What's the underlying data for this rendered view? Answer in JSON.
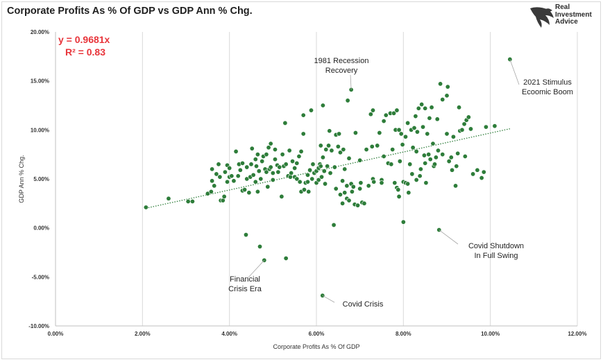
{
  "header": {
    "title": "Corporate Profits As % Of GDP vs GDP Ann % Chg.",
    "logo_lines": [
      "Real",
      "Investment",
      "Advice"
    ]
  },
  "chart_data": {
    "type": "scatter",
    "title": "Corporate Profits As % Of GDP vs GDP Ann % Chg.",
    "xlabel": "Corporate Profits As % Of GDP",
    "ylabel": "GDP Ann % Chg.",
    "xlim": [
      0,
      12
    ],
    "ylim": [
      -10,
      20
    ],
    "x_ticks": [
      "0.00%",
      "2.00%",
      "4.00%",
      "6.00%",
      "8.00%",
      "10.00%",
      "12.00%"
    ],
    "y_ticks": [
      "-10.00%",
      "-5.00%",
      "0.00%",
      "5.00%",
      "10.00%",
      "15.00%",
      "20.00%"
    ],
    "grid": "vertical",
    "point_color": "#2e7d3a",
    "trendline": {
      "slope": 0.9681,
      "intercept": 0,
      "color": "#2e7d3a",
      "style": "dotted",
      "x_range": [
        2.08,
        10.45
      ]
    },
    "equation": "y = 0.9681x",
    "r_squared": "R² = 0.83",
    "equation_color": "#e8353b",
    "annotations": [
      {
        "lines": [
          "1981 Recession",
          "Recovery"
        ],
        "point": [
          6.8,
          14.1
        ]
      },
      {
        "lines": [
          "2021 Stimulus",
          "Ecoomic Boom"
        ],
        "point": [
          10.45,
          17.2
        ]
      },
      {
        "lines": [
          "Covid Shutdown",
          "In Full Swing"
        ],
        "point": [
          8.82,
          -0.2
        ]
      },
      {
        "lines": [
          "Financial",
          "Crisis Era"
        ],
        "point": [
          4.8,
          -3.3
        ]
      },
      {
        "lines": [
          "Covid Crisis"
        ],
        "point": [
          6.14,
          -6.9
        ]
      }
    ],
    "points": [
      [
        2.08,
        2.1
      ],
      [
        2.6,
        3.0
      ],
      [
        3.05,
        2.7
      ],
      [
        3.15,
        2.7
      ],
      [
        3.5,
        3.5
      ],
      [
        3.58,
        3.7
      ],
      [
        3.6,
        4.8
      ],
      [
        3.65,
        4.3
      ],
      [
        3.6,
        6.0
      ],
      [
        3.7,
        5.5
      ],
      [
        3.75,
        6.5
      ],
      [
        3.78,
        5.2
      ],
      [
        3.8,
        2.8
      ],
      [
        3.85,
        2.8
      ],
      [
        3.88,
        3.2
      ],
      [
        3.9,
        5.7
      ],
      [
        3.95,
        4.7
      ],
      [
        3.95,
        6.4
      ],
      [
        4.0,
        5.2
      ],
      [
        4.0,
        6.1
      ],
      [
        4.05,
        5.3
      ],
      [
        4.1,
        4.8
      ],
      [
        4.15,
        7.8
      ],
      [
        4.2,
        5.3
      ],
      [
        4.22,
        6.5
      ],
      [
        4.25,
        5.9
      ],
      [
        4.3,
        3.8
      ],
      [
        4.3,
        6.6
      ],
      [
        4.35,
        3.9
      ],
      [
        4.38,
        -0.7
      ],
      [
        4.4,
        6.2
      ],
      [
        4.4,
        5.0
      ],
      [
        4.45,
        3.6
      ],
      [
        4.48,
        5.2
      ],
      [
        4.5,
        6.5
      ],
      [
        4.52,
        8.1
      ],
      [
        4.55,
        5.4
      ],
      [
        4.6,
        7.0
      ],
      [
        4.6,
        4.7
      ],
      [
        4.62,
        6.3
      ],
      [
        4.65,
        7.5
      ],
      [
        4.65,
        3.7
      ],
      [
        4.68,
        5.8
      ],
      [
        4.7,
        -1.9
      ],
      [
        4.72,
        5.0
      ],
      [
        4.75,
        6.8
      ],
      [
        4.78,
        7.3
      ],
      [
        4.8,
        -3.3
      ],
      [
        4.82,
        6.0
      ],
      [
        4.85,
        7.5
      ],
      [
        4.85,
        5.7
      ],
      [
        4.88,
        4.2
      ],
      [
        4.9,
        8.2
      ],
      [
        4.92,
        6.0
      ],
      [
        4.95,
        6.2
      ],
      [
        4.95,
        8.6
      ],
      [
        5.0,
        5.6
      ],
      [
        5.0,
        4.9
      ],
      [
        5.05,
        7.0
      ],
      [
        5.05,
        8.0
      ],
      [
        5.1,
        6.4
      ],
      [
        5.12,
        5.7
      ],
      [
        5.15,
        6.2
      ],
      [
        5.2,
        3.2
      ],
      [
        5.22,
        7.5
      ],
      [
        5.25,
        6.3
      ],
      [
        5.28,
        10.7
      ],
      [
        5.3,
        -3.1
      ],
      [
        5.3,
        6.5
      ],
      [
        5.35,
        5.3
      ],
      [
        5.38,
        7.9
      ],
      [
        5.4,
        5.2
      ],
      [
        5.42,
        5.6
      ],
      [
        5.45,
        6.8
      ],
      [
        5.5,
        6.1
      ],
      [
        5.5,
        5.2
      ],
      [
        5.55,
        5.0
      ],
      [
        5.55,
        6.6
      ],
      [
        5.6,
        7.3
      ],
      [
        5.62,
        4.7
      ],
      [
        5.65,
        3.7
      ],
      [
        5.65,
        7.8
      ],
      [
        5.7,
        11.5
      ],
      [
        5.7,
        9.6
      ],
      [
        5.72,
        3.9
      ],
      [
        5.75,
        4.6
      ],
      [
        5.8,
        5.4
      ],
      [
        5.8,
        4.7
      ],
      [
        5.82,
        3.7
      ],
      [
        5.85,
        5.9
      ],
      [
        5.88,
        12.0
      ],
      [
        5.9,
        5.0
      ],
      [
        5.92,
        6.5
      ],
      [
        5.95,
        5.6
      ],
      [
        6.0,
        5.8
      ],
      [
        6.0,
        4.6
      ],
      [
        6.05,
        6.1
      ],
      [
        6.05,
        4.9
      ],
      [
        6.08,
        6.5
      ],
      [
        6.1,
        6.3
      ],
      [
        6.1,
        8.4
      ],
      [
        6.12,
        5.2
      ],
      [
        6.14,
        -6.9
      ],
      [
        6.15,
        12.5
      ],
      [
        6.15,
        7.2
      ],
      [
        6.18,
        5.8
      ],
      [
        6.2,
        4.5
      ],
      [
        6.22,
        8.0
      ],
      [
        6.25,
        6.3
      ],
      [
        6.28,
        8.4
      ],
      [
        6.3,
        9.9
      ],
      [
        6.32,
        5.6
      ],
      [
        6.35,
        7.9
      ],
      [
        6.4,
        0.3
      ],
      [
        6.42,
        6.2
      ],
      [
        6.45,
        4.0
      ],
      [
        6.45,
        9.5
      ],
      [
        6.5,
        8.3
      ],
      [
        6.52,
        9.6
      ],
      [
        6.55,
        3.4
      ],
      [
        6.55,
        7.7
      ],
      [
        6.6,
        4.8
      ],
      [
        6.6,
        2.5
      ],
      [
        6.62,
        8.0
      ],
      [
        6.65,
        3.6
      ],
      [
        6.65,
        6.0
      ],
      [
        6.7,
        4.3
      ],
      [
        6.7,
        3.0
      ],
      [
        6.72,
        13.0
      ],
      [
        6.75,
        2.8
      ],
      [
        6.75,
        7.1
      ],
      [
        6.8,
        14.1
      ],
      [
        6.8,
        4.5
      ],
      [
        6.82,
        3.7
      ],
      [
        6.85,
        4.2
      ],
      [
        6.88,
        2.4
      ],
      [
        6.9,
        9.7
      ],
      [
        6.95,
        2.3
      ],
      [
        7.0,
        4.0
      ],
      [
        7.0,
        6.9
      ],
      [
        7.02,
        4.6
      ],
      [
        7.05,
        2.6
      ],
      [
        7.1,
        2.5
      ],
      [
        7.15,
        8.0
      ],
      [
        7.2,
        4.3
      ],
      [
        7.25,
        11.6
      ],
      [
        7.28,
        8.3
      ],
      [
        7.3,
        12.0
      ],
      [
        7.3,
        5.0
      ],
      [
        7.32,
        4.7
      ],
      [
        7.4,
        8.4
      ],
      [
        7.45,
        9.7
      ],
      [
        7.5,
        4.9
      ],
      [
        7.5,
        4.6
      ],
      [
        7.55,
        7.3
      ],
      [
        7.55,
        10.9
      ],
      [
        7.6,
        11.5
      ],
      [
        7.65,
        6.6
      ],
      [
        7.7,
        11.7
      ],
      [
        7.72,
        6.5
      ],
      [
        7.75,
        8.0
      ],
      [
        7.78,
        11.7
      ],
      [
        7.8,
        4.6
      ],
      [
        7.82,
        10.0
      ],
      [
        7.85,
        12.0
      ],
      [
        7.85,
        4.1
      ],
      [
        7.88,
        3.9
      ],
      [
        7.9,
        3.2
      ],
      [
        7.9,
        10.0
      ],
      [
        7.92,
        6.8
      ],
      [
        7.95,
        9.6
      ],
      [
        7.98,
        8.5
      ],
      [
        8.0,
        4.7
      ],
      [
        8.0,
        0.6
      ],
      [
        8.05,
        4.6
      ],
      [
        8.05,
        9.3
      ],
      [
        8.1,
        4.5
      ],
      [
        8.1,
        10.7
      ],
      [
        8.12,
        3.6
      ],
      [
        8.15,
        6.5
      ],
      [
        8.18,
        10.0
      ],
      [
        8.2,
        5.5
      ],
      [
        8.22,
        8.2
      ],
      [
        8.25,
        10.2
      ],
      [
        8.28,
        11.4
      ],
      [
        8.3,
        4.9
      ],
      [
        8.3,
        7.8
      ],
      [
        8.32,
        9.8
      ],
      [
        8.35,
        12.2
      ],
      [
        8.38,
        5.3
      ],
      [
        8.4,
        6.0
      ],
      [
        8.42,
        12.6
      ],
      [
        8.45,
        10.3
      ],
      [
        8.48,
        7.4
      ],
      [
        8.5,
        12.2
      ],
      [
        8.5,
        6.6
      ],
      [
        8.52,
        4.6
      ],
      [
        8.55,
        9.6
      ],
      [
        8.58,
        7.5
      ],
      [
        8.6,
        11.2
      ],
      [
        8.62,
        7.0
      ],
      [
        8.65,
        12.3
      ],
      [
        8.68,
        8.6
      ],
      [
        8.7,
        6.3
      ],
      [
        8.72,
        6.5
      ],
      [
        8.75,
        7.2
      ],
      [
        8.78,
        11.1
      ],
      [
        8.8,
        7.9
      ],
      [
        8.82,
        -0.2
      ],
      [
        8.85,
        14.7
      ],
      [
        8.9,
        13.1
      ],
      [
        8.9,
        7.5
      ],
      [
        9.0,
        9.6
      ],
      [
        9.0,
        13.5
      ],
      [
        9.02,
        14.4
      ],
      [
        9.05,
        6.8
      ],
      [
        9.1,
        7.2
      ],
      [
        9.12,
        5.9
      ],
      [
        9.15,
        9.3
      ],
      [
        9.2,
        4.3
      ],
      [
        9.22,
        6.3
      ],
      [
        9.25,
        7.6
      ],
      [
        9.28,
        12.3
      ],
      [
        9.3,
        9.9
      ],
      [
        9.35,
        10.0
      ],
      [
        9.4,
        10.6
      ],
      [
        9.42,
        7.3
      ],
      [
        9.45,
        11.0
      ],
      [
        9.5,
        11.3
      ],
      [
        9.55,
        10.1
      ],
      [
        9.6,
        5.5
      ],
      [
        9.7,
        5.9
      ],
      [
        9.8,
        5.1
      ],
      [
        9.85,
        5.7
      ],
      [
        9.9,
        10.3
      ],
      [
        10.1,
        10.4
      ],
      [
        10.45,
        17.2
      ]
    ]
  }
}
